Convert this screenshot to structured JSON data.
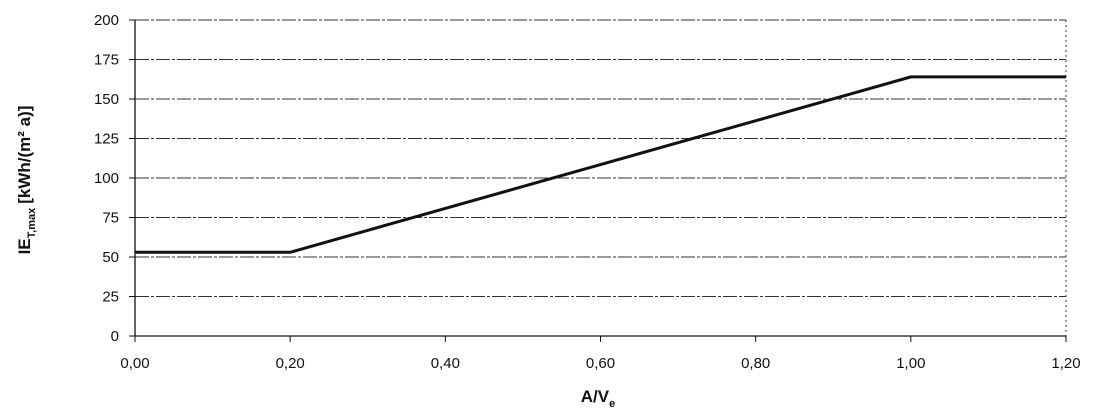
{
  "chart_data": {
    "type": "line",
    "title": "",
    "xlabel": {
      "main": "A/V",
      "sub": "e"
    },
    "ylabel": {
      "main": "IE",
      "sub": "T,max",
      "unit": "[kWh/(m² a)]"
    },
    "x_ticks": [
      "0,00",
      "0,20",
      "0,40",
      "0,60",
      "0,80",
      "1,00",
      "1,20"
    ],
    "x_tick_values": [
      0,
      0.2,
      0.4,
      0.6,
      0.8,
      1.0,
      1.2
    ],
    "y_ticks": [
      "0",
      "25",
      "50",
      "75",
      "100",
      "125",
      "150",
      "175",
      "200"
    ],
    "y_tick_values": [
      0,
      25,
      50,
      75,
      100,
      125,
      150,
      175,
      200
    ],
    "xlim": [
      0,
      1.2
    ],
    "ylim": [
      0,
      200
    ],
    "grid": "horizontal",
    "legend": "none",
    "series": [
      {
        "x": [
          0,
          0.2,
          1.0,
          1.2
        ],
        "y": [
          53,
          53,
          164,
          164
        ]
      }
    ],
    "colors": {
      "line": "#111111",
      "grid": "#333333",
      "axis": "#111111"
    }
  }
}
